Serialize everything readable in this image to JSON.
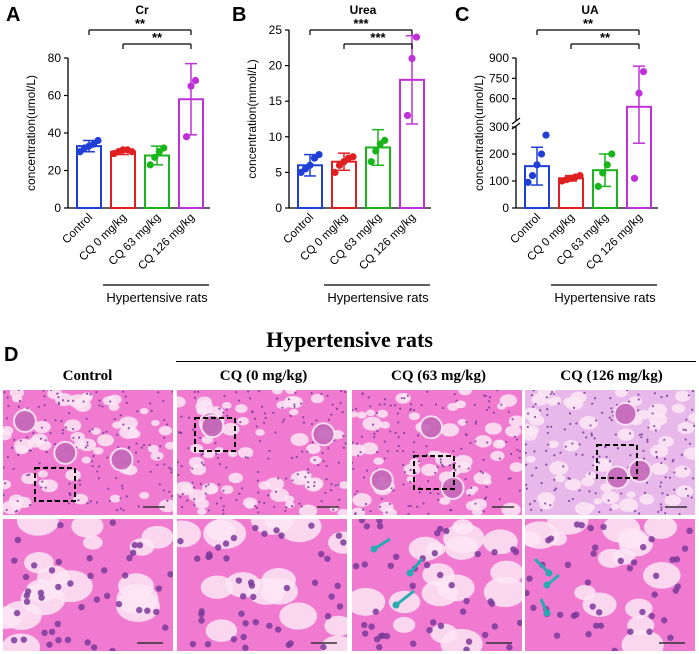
{
  "panels": {
    "A": "A",
    "B": "B",
    "C": "C",
    "D": "D"
  },
  "categories": [
    "Control",
    "CQ 0 mg/kg",
    "CQ 63 mg/kg",
    "CQ 126 mg/kg"
  ],
  "group_label": "Hypertensive rats",
  "colors": {
    "Control": "#1f3fd6",
    "CQ 0 mg/kg": "#e02020",
    "CQ 63 mg/kg": "#1ab51a",
    "CQ 126 mg/kg": "#c030d8",
    "bar_fill": "#ffffff",
    "stain_pink": "#e85fb8",
    "stain_purple": "#7a3a9a",
    "arrow": "#2aaab0"
  },
  "chart_data": [
    {
      "type": "bar",
      "title": "Cr",
      "ylabel": "concentration(umol/L)",
      "ylim": [
        0,
        80
      ],
      "yticks": [
        0,
        20,
        40,
        60,
        80
      ],
      "categories": [
        "Control",
        "CQ 0 mg/kg",
        "CQ 63 mg/kg",
        "CQ 126 mg/kg"
      ],
      "values": [
        33,
        30,
        28,
        58
      ],
      "errors": [
        3,
        1.5,
        5,
        19
      ],
      "points": [
        [
          30,
          32,
          33,
          34,
          36
        ],
        [
          29,
          30,
          31,
          31,
          30
        ],
        [
          23,
          27,
          30,
          32
        ],
        [
          38,
          65,
          68
        ]
      ],
      "significance": [
        {
          "from": "Control",
          "to": "CQ 126 mg/kg",
          "label": "**"
        },
        {
          "from": "CQ 0 mg/kg",
          "to": "CQ 126 mg/kg",
          "label": "**"
        }
      ]
    },
    {
      "type": "bar",
      "title": "Urea",
      "ylabel": "concentration(mmol/L)",
      "ylim": [
        0,
        25
      ],
      "yticks": [
        0,
        5,
        10,
        15,
        20,
        25
      ],
      "categories": [
        "Control",
        "CQ 0 mg/kg",
        "CQ 63 mg/kg",
        "CQ 126 mg/kg"
      ],
      "values": [
        6,
        6.5,
        8.5,
        18
      ],
      "errors": [
        1.5,
        1.2,
        2.5,
        6.2
      ],
      "points": [
        [
          5,
          5.5,
          6,
          7,
          7.5
        ],
        [
          5,
          6,
          6.5,
          7,
          7.2
        ],
        [
          6.5,
          8,
          9,
          9.5
        ],
        [
          13,
          21,
          24
        ]
      ],
      "significance": [
        {
          "from": "Control",
          "to": "CQ 126 mg/kg",
          "label": "***"
        },
        {
          "from": "CQ 0 mg/kg",
          "to": "CQ 126 mg/kg",
          "label": "***"
        }
      ]
    },
    {
      "type": "bar",
      "title": "UA",
      "ylabel": "concentration(umol/L)",
      "axis_break": true,
      "yticks": [
        0,
        100,
        200,
        300,
        600,
        750,
        900
      ],
      "categories": [
        "Control",
        "CQ 0 mg/kg",
        "CQ 63 mg/kg",
        "CQ 126 mg/kg"
      ],
      "values": [
        155,
        110,
        140,
        540
      ],
      "errors": [
        70,
        10,
        60,
        300
      ],
      "points": [
        [
          95,
          120,
          160,
          200,
          270
        ],
        [
          100,
          105,
          110,
          115,
          120
        ],
        [
          80,
          130,
          160,
          200
        ],
        [
          110,
          640,
          800
        ]
      ],
      "significance": [
        {
          "from": "Control",
          "to": "CQ 126 mg/kg",
          "label": "**"
        },
        {
          "from": "CQ 0 mg/kg",
          "to": "CQ 126 mg/kg",
          "label": "**"
        }
      ]
    }
  ],
  "histology": {
    "title": "Hypertensive rats",
    "columns": [
      "Control",
      "CQ (0 mg/kg)",
      "CQ (63 mg/kg)",
      "CQ (126 mg/kg)"
    ]
  }
}
